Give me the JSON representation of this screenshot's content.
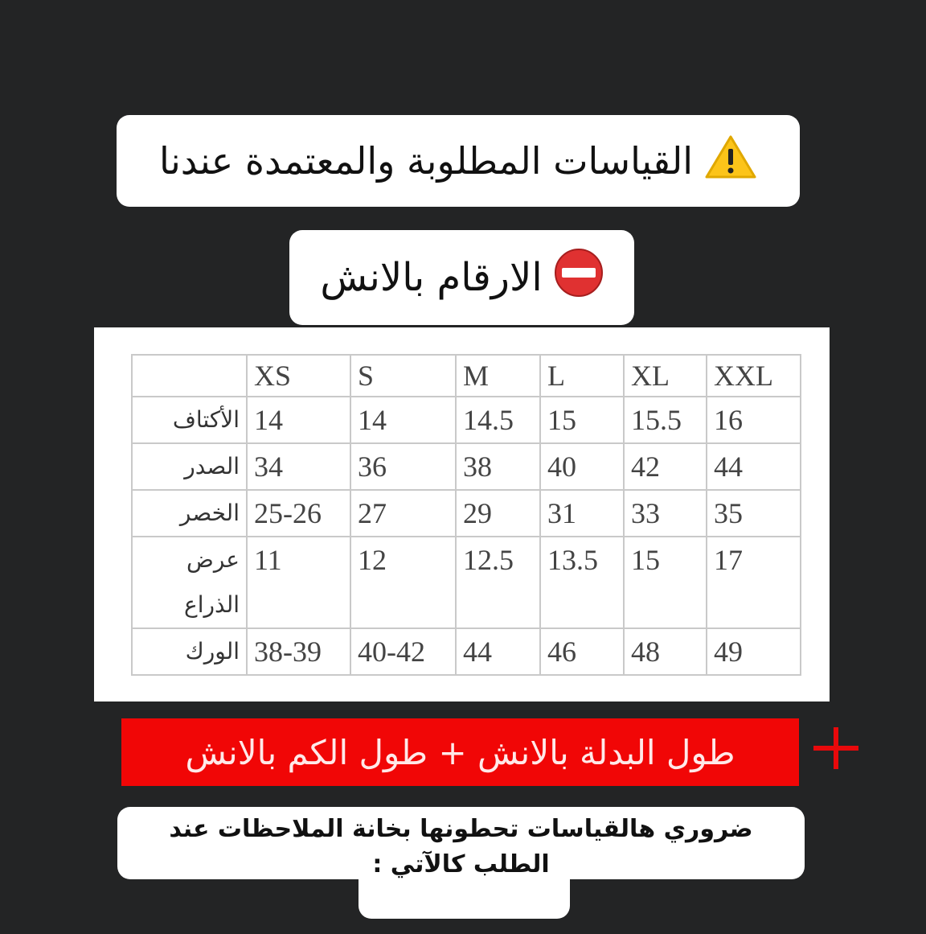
{
  "header": {
    "title": "القياسات المطلوبة والمعتمدة عندنا",
    "title_icon": "warning-icon",
    "units": "الارقام بالانش",
    "units_icon": "no-entry-icon"
  },
  "table": {
    "columns": [
      "",
      "XS",
      "S",
      "M",
      "L",
      "XL",
      "XXL"
    ],
    "rows": [
      {
        "label": "الأكتاف",
        "values": [
          "14",
          "14",
          "14.5",
          "15",
          "15.5",
          "16"
        ]
      },
      {
        "label": "الصدر",
        "values": [
          "34",
          "36",
          "38",
          "40",
          "42",
          "44"
        ]
      },
      {
        "label": "الخصر",
        "values": [
          "25-26",
          "27",
          "29",
          "31",
          "33",
          "35"
        ]
      },
      {
        "label": "عرض الذراع",
        "values": [
          "11",
          "12",
          "12.5",
          "13.5",
          "15",
          "17"
        ]
      },
      {
        "label": "الورك",
        "values": [
          "38-39",
          "40-42",
          "44",
          "46",
          "48",
          "49"
        ]
      }
    ]
  },
  "banner": {
    "text": "طول البدلة بالانش + طول الكم بالانش",
    "icon": "plus-icon",
    "color": "#f10606"
  },
  "note": {
    "line1": "ضروري هالقياسات تحطونها بخانة الملاحظات عند",
    "line2": "الطلب كالآتي :"
  }
}
